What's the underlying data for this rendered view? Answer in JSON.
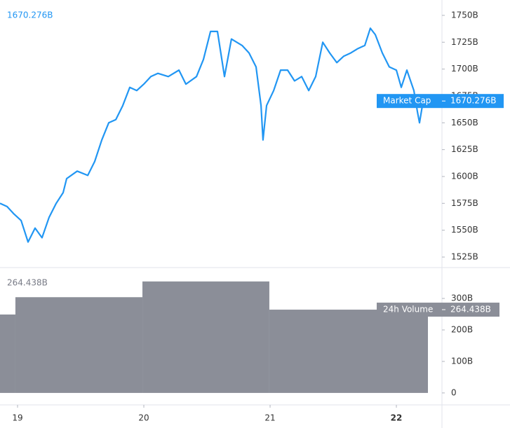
{
  "chart_data": [
    {
      "type": "line",
      "x": [
        18.861,
        18.917,
        18.972,
        19.028,
        19.083,
        19.139,
        19.194,
        19.25,
        19.306,
        19.361,
        19.389,
        19.472,
        19.556,
        19.611,
        19.667,
        19.722,
        19.778,
        19.833,
        19.889,
        19.944,
        20.0,
        20.056,
        20.111,
        20.194,
        20.278,
        20.333,
        20.417,
        20.472,
        20.528,
        20.583,
        20.639,
        20.694,
        20.778,
        20.833,
        20.889,
        20.928,
        20.944,
        20.972,
        21.028,
        21.083,
        21.139,
        21.194,
        21.25,
        21.306,
        21.361,
        21.417,
        21.472,
        21.528,
        21.583,
        21.639,
        21.694,
        21.75,
        21.794,
        21.833,
        21.889,
        21.944,
        22.0,
        22.039,
        22.083,
        22.139,
        22.167,
        22.183,
        22.206,
        22.233
      ],
      "series": [
        {
          "name": "Market Cap",
          "color": "#2196f3",
          "values": [
            1575,
            1572,
            1565,
            1559,
            1539,
            1552,
            1543,
            1562,
            1575,
            1585,
            1598,
            1605,
            1601,
            1614,
            1634,
            1650,
            1653,
            1666,
            1683,
            1680,
            1686,
            1693,
            1696,
            1693,
            1699,
            1686,
            1693,
            1709,
            1735,
            1735,
            1693,
            1728,
            1722,
            1715,
            1702,
            1666,
            1634,
            1666,
            1680,
            1699,
            1699,
            1689,
            1693,
            1680,
            1693,
            1725,
            1715,
            1706,
            1712,
            1715,
            1719,
            1722,
            1738,
            1732,
            1715,
            1702,
            1699,
            1683,
            1699,
            1680,
            1660,
            1650,
            1666,
            1670.276
          ]
        }
      ],
      "value_label": "1670.276B",
      "xlim": [
        18.861,
        22.361
      ],
      "xticks": [
        19,
        20,
        21,
        22
      ],
      "ylim": [
        1515.2,
        1764.3
      ],
      "yticks": [
        {
          "value": 1525,
          "label": "1525B"
        },
        {
          "value": 1550,
          "label": "1550B"
        },
        {
          "value": 1575,
          "label": "1575B"
        },
        {
          "value": 1600,
          "label": "1600B"
        },
        {
          "value": 1625,
          "label": "1625B"
        },
        {
          "value": 1650,
          "label": "1650B"
        },
        {
          "value": 1675,
          "label": "1675B"
        },
        {
          "value": 1700,
          "label": "1700B"
        },
        {
          "value": 1725,
          "label": "1725B"
        },
        {
          "value": 1750,
          "label": "1750B"
        }
      ]
    },
    {
      "type": "histogram",
      "bins": [
        18.861,
        18.983,
        19.989,
        20.994,
        22.25
      ],
      "series": [
        {
          "name": "24h Volume",
          "color": "#8b8e98",
          "values": [
            249,
            304,
            354,
            264.438
          ]
        }
      ],
      "value_label": "264.438B",
      "xlim": [
        18.861,
        22.361
      ],
      "ylim": [
        -38,
        398
      ],
      "yticks": [
        0,
        {
          "value": 100,
          "label": "100B"
        },
        {
          "value": 200,
          "label": "200B"
        },
        {
          "value": 300,
          "label": "300B"
        }
      ]
    }
  ]
}
